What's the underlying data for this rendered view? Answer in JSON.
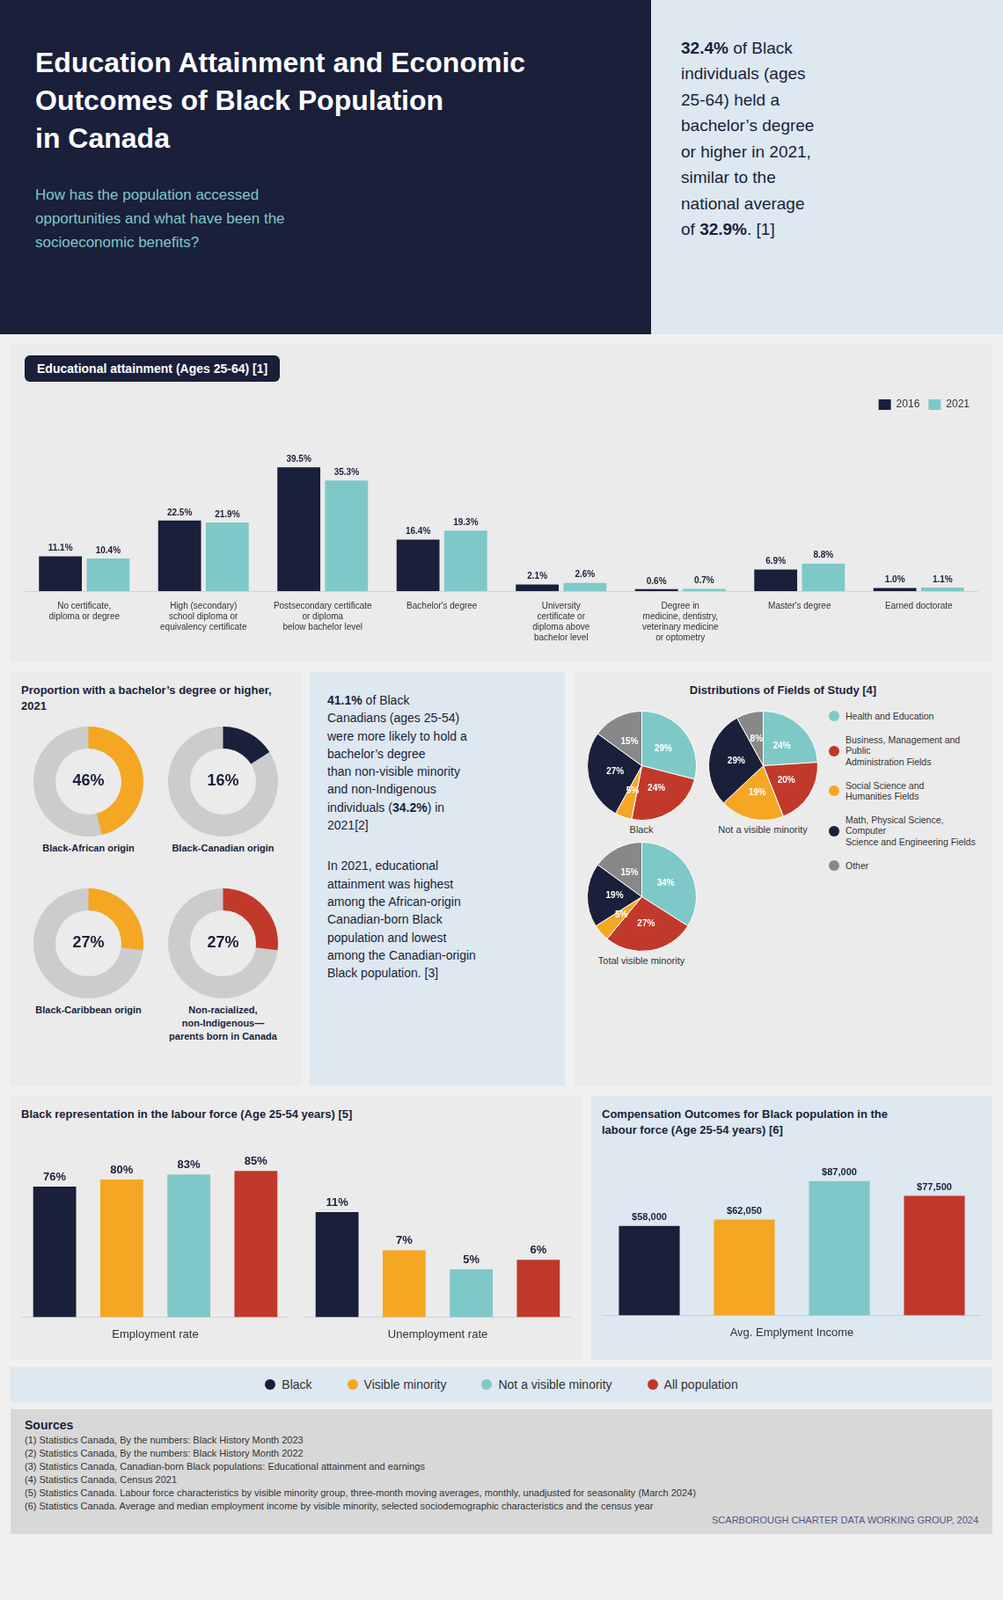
{
  "title": "Education Attainment and Economic\nOutcomes of Black Population\nin Canada",
  "subtitle": "How has the population accessed\nopportunities and what have been the\nsocioeconomic benefits?",
  "annotations": [
    "32.4% of Black\nindividuals (ages\n25-64) held a\nbachelor’s degree\nor higher in 2021,\nsimilar to the\nnational average\nof 32.9%. [1]",
    "41.1% of Black\nCanadians (ages 25-54)\nwere more likely to hold a\nbachelor’s degree\nthan non-visible minority\nand non-Indigenous\nindividuals (34.2%) in\n2021[2]",
    "In 2021, educational\nattainment was highest\namong the African-origin\nCanadian-born Black\npopulation and lowest\namong the Canadian-origin\nBlack population. [3]",
    "Sources",
    "(1) Statistics Canada, By the numbers: Black History Month 2023",
    "(2) Statistics Canada, By the numbers: Black History Month 2022",
    "(3) Statistics Canada, Canadian-born Black populations: Educational attainment and earnings",
    "(4) Statistics Canada, Census 2021",
    "(5) Statistics Canada. Labour force characteristics by visible minority group, three-month moving averages, monthly, unadjusted for seasonality (March 2024)",
    "(6) Statistics Canada. Average and median employment income by visible minority, selected sociodemographic characteristics and the census year",
    "SCARBOROUGH CHARTER DATA WORKING GROUP, 2024"
  ],
  "chart_data": [
    {
      "type": "bar",
      "title": "Educational attainment (Ages 25-64) [1]",
      "categories": [
        "No certificate,\ndiploma or degree",
        "High (secondary)\nschool diploma or\nequivalency certificate",
        "Postsecondary certificate\nor diploma\nbelow bachelor level",
        "Bachelor's degree",
        "University\ncertificate or\ndiploma above\nbachelor level",
        "Degree in\nmedicine, dentistry,\nveterinary medicine\nor optometry",
        "Master's degree",
        "Earned doctorate"
      ],
      "series": [
        {
          "name": "2016",
          "color": "#1a1f3a",
          "values": [
            11.1,
            22.5,
            39.5,
            16.4,
            2.1,
            0.6,
            6.9,
            1.0
          ],
          "value_labels": [
            "11.1%",
            "22.5%",
            "39.5%",
            "16.4%",
            "2.1%",
            "0.6%",
            "6.9%",
            "1.0%"
          ]
        },
        {
          "name": "2021",
          "color": "#7fc8c8",
          "values": [
            10.4,
            21.9,
            35.3,
            19.3,
            2.6,
            0.7,
            8.8,
            1.1
          ],
          "value_labels": [
            "10.4%",
            "21.9%",
            "35.3%",
            "19.3%",
            "2.6%",
            "0.7%",
            "8.8%",
            "1.1%"
          ]
        }
      ],
      "ylim": [
        0,
        55
      ],
      "tick_labels": "x",
      "grid": false,
      "legend": "top",
      "data_labels": true
    },
    {
      "type": "doughnut",
      "title": "Proportion with a bachelor’s degree or higher, 2021",
      "categories": [
        "Black-African origin",
        "Black-Canadian origin",
        "Black-Caribbean origin",
        "Non-racialized,\nnon-Indigenous—\nparents born in Canada"
      ],
      "values": [
        46,
        16,
        27,
        27
      ],
      "value_labels": [
        "46%",
        "16%",
        "27%",
        "27%"
      ],
      "colors": [
        "#f5a623",
        "#1a1f3a",
        "#f5a623",
        "#c0392b"
      ],
      "ylim": [
        0,
        100
      ],
      "data_labels": true
    },
    {
      "type": "pie",
      "title": "Distributions of Fields of Study [4]",
      "categories": [
        "Health and Education",
        "Business, Management and Public\nAdministration Fields",
        "Social Science and\nHumanities Fields",
        "Math, Physical Science, Computer\nScience and Engineering Fields",
        "Other"
      ],
      "colors": [
        "#7fc8c8",
        "#c0392b",
        "#f5a623",
        "#1a1f3a",
        "#888888"
      ],
      "series": [
        {
          "name": "Black",
          "values": [
            29,
            24,
            5,
            27,
            15
          ],
          "value_labels": [
            "29%",
            "24%",
            "5%",
            "27%",
            "15%"
          ]
        },
        {
          "name": "Not a visible minority",
          "values": [
            24,
            20,
            19,
            29,
            8
          ],
          "value_labels": [
            "24%",
            "20%",
            "19%",
            "29%",
            "8%"
          ]
        },
        {
          "name": "Total visible minority",
          "values": [
            34,
            27,
            5,
            19,
            15
          ],
          "value_labels": [
            "34%",
            "27%",
            "5%",
            "19%",
            "15%"
          ]
        }
      ],
      "data_labels": true,
      "legend": "right"
    },
    {
      "type": "bar",
      "title": "Black representation in the labour force (Age 25-54 years) [5]",
      "xlabel": "Employment rate",
      "categories": [
        "Black",
        "Visible minority",
        "Not a visible minority",
        "All population"
      ],
      "colors": [
        "#1a1f3a",
        "#f5a623",
        "#7fc8c8",
        "#c0392b"
      ],
      "values": [
        76,
        80,
        83,
        85
      ],
      "value_labels": [
        "76%",
        "80%",
        "83%",
        "85%"
      ],
      "ylim": [
        0,
        100
      ],
      "tick_labels": false,
      "grid": false,
      "data_labels": true,
      "legend": "bottom"
    },
    {
      "type": "bar",
      "xlabel": "Unemployment rate",
      "categories": [
        "Black",
        "Visible minority",
        "Not a visible minority",
        "All population"
      ],
      "colors": [
        "#1a1f3a",
        "#f5a623",
        "#7fc8c8",
        "#c0392b"
      ],
      "values": [
        11,
        7,
        5,
        6
      ],
      "value_labels": [
        "11%",
        "7%",
        "5%",
        "6%"
      ],
      "ylim": [
        0,
        18
      ],
      "tick_labels": false,
      "grid": false,
      "data_labels": true
    },
    {
      "type": "bar",
      "title": "Compensation Outcomes for Black population in the\nlabour force (Age 25-54 years) [6]",
      "xlabel": "Avg. Emplyment Income",
      "categories": [
        "Black",
        "Visible minority",
        "Not a visible minority",
        "All population"
      ],
      "colors": [
        "#1a1f3a",
        "#f5a623",
        "#7fc8c8",
        "#c0392b"
      ],
      "values": [
        58000,
        62050,
        87000,
        77500
      ],
      "value_labels": [
        "$58,000",
        "$62,050",
        "$87,000",
        "$77,500"
      ],
      "ylim": [
        0,
        100000
      ],
      "tick_labels": false,
      "grid": false,
      "data_labels": true
    }
  ]
}
